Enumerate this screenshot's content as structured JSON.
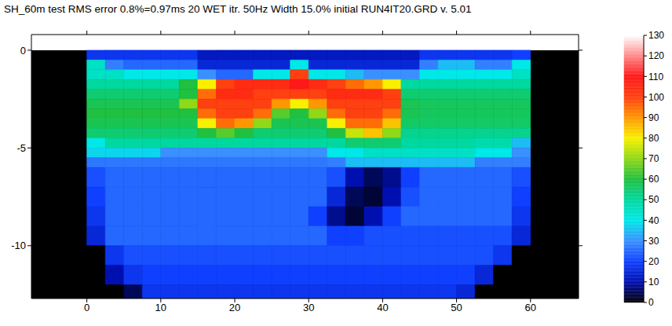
{
  "chart_data": {
    "type": "heatmap",
    "title": "SH_60m test RMS error 0.8%=0.97ms 20 WET itr. 50Hz Width 15.0% initial RUN4IT20.GRD v. 5.01",
    "xlim": [
      -7.5,
      66.5
    ],
    "xticks": [
      0,
      10,
      20,
      30,
      40,
      50,
      60
    ],
    "ylim": [
      -12.7,
      0.8
    ],
    "yticks": [
      -10,
      -5,
      0
    ],
    "x_edges": [
      0,
      2.5,
      5,
      7.5,
      10,
      12.5,
      15,
      17.5,
      20,
      22.5,
      25,
      27.5,
      30,
      32.5,
      35,
      37.5,
      40,
      42.5,
      45,
      47.5,
      50,
      52.5,
      55,
      57.5,
      60
    ],
    "z_edges": [
      0,
      -0.5,
      -1,
      -1.5,
      -2,
      -2.5,
      -3,
      -3.5,
      -4,
      -4.5,
      -5,
      -5.5,
      -6,
      -7,
      -8,
      -9,
      -10,
      -11,
      -12,
      -12.7
    ],
    "cells": [
      [
        18,
        18,
        18,
        18,
        18,
        18,
        12,
        12,
        12,
        12,
        12,
        12,
        12,
        12,
        12,
        12,
        12,
        12,
        18,
        18,
        18,
        18,
        18,
        20
      ],
      [
        45,
        28,
        25,
        25,
        25,
        25,
        15,
        15,
        15,
        15,
        15,
        40,
        15,
        15,
        15,
        15,
        15,
        15,
        28,
        35,
        35,
        28,
        28,
        40
      ],
      [
        45,
        45,
        40,
        40,
        40,
        40,
        30,
        25,
        25,
        40,
        40,
        100,
        40,
        40,
        35,
        30,
        30,
        30,
        40,
        40,
        40,
        40,
        40,
        45
      ],
      [
        50,
        50,
        50,
        50,
        50,
        60,
        80,
        100,
        105,
        105,
        105,
        110,
        105,
        100,
        95,
        90,
        80,
        50,
        50,
        50,
        50,
        50,
        50,
        50
      ],
      [
        55,
        55,
        55,
        55,
        55,
        60,
        95,
        105,
        105,
        100,
        100,
        100,
        100,
        105,
        105,
        105,
        100,
        55,
        55,
        55,
        55,
        55,
        55,
        55
      ],
      [
        58,
        58,
        58,
        58,
        58,
        70,
        100,
        100,
        100,
        100,
        90,
        80,
        90,
        100,
        100,
        100,
        100,
        58,
        57,
        57,
        57,
        57,
        57,
        57
      ],
      [
        60,
        60,
        60,
        60,
        60,
        60,
        95,
        100,
        100,
        95,
        65,
        60,
        70,
        95,
        100,
        100,
        95,
        58,
        57,
        57,
        57,
        57,
        57,
        57
      ],
      [
        58,
        58,
        58,
        58,
        58,
        58,
        80,
        95,
        90,
        70,
        58,
        58,
        58,
        80,
        95,
        95,
        85,
        56,
        56,
        56,
        56,
        56,
        56,
        56
      ],
      [
        55,
        55,
        55,
        55,
        55,
        55,
        60,
        65,
        60,
        55,
        55,
        55,
        55,
        60,
        75,
        85,
        70,
        52,
        52,
        52,
        52,
        52,
        52,
        52
      ],
      [
        40,
        50,
        50,
        50,
        50,
        50,
        50,
        50,
        50,
        50,
        50,
        50,
        50,
        50,
        55,
        55,
        55,
        50,
        50,
        50,
        50,
        48,
        48,
        35
      ],
      [
        38,
        38,
        38,
        38,
        30,
        30,
        30,
        30,
        30,
        30,
        30,
        30,
        30,
        40,
        40,
        45,
        45,
        45,
        45,
        45,
        45,
        40,
        40,
        30
      ],
      [
        27,
        27,
        27,
        27,
        27,
        27,
        27,
        27,
        27,
        27,
        27,
        27,
        27,
        28,
        35,
        35,
        35,
        35,
        35,
        35,
        35,
        28,
        28,
        28
      ],
      [
        22,
        25,
        25,
        25,
        25,
        25,
        25,
        25,
        25,
        25,
        25,
        25,
        25,
        22,
        10,
        5,
        8,
        20,
        25,
        25,
        25,
        25,
        25,
        22
      ],
      [
        20,
        25,
        25,
        25,
        25,
        25,
        25,
        25,
        25,
        25,
        25,
        25,
        25,
        15,
        5,
        3,
        10,
        22,
        25,
        25,
        25,
        25,
        25,
        20
      ],
      [
        18,
        25,
        25,
        25,
        25,
        25,
        25,
        25,
        25,
        25,
        25,
        25,
        20,
        8,
        3,
        10,
        20,
        25,
        25,
        25,
        25,
        25,
        25,
        18
      ],
      [
        15,
        25,
        25,
        25,
        25,
        25,
        25,
        25,
        25,
        25,
        25,
        25,
        25,
        20,
        20,
        22,
        22,
        22,
        22,
        22,
        22,
        22,
        22,
        15
      ],
      [
        0,
        18,
        22,
        22,
        22,
        22,
        22,
        22,
        22,
        22,
        22,
        22,
        22,
        22,
        22,
        22,
        22,
        22,
        22,
        22,
        22,
        22,
        18,
        0
      ],
      [
        0,
        10,
        18,
        20,
        20,
        20,
        20,
        20,
        20,
        20,
        20,
        20,
        20,
        20,
        20,
        20,
        20,
        20,
        20,
        20,
        20,
        15,
        0,
        0
      ],
      [
        0,
        0,
        5,
        18,
        18,
        18,
        18,
        18,
        18,
        18,
        18,
        18,
        18,
        18,
        18,
        18,
        18,
        18,
        18,
        18,
        15,
        0,
        0,
        0
      ]
    ],
    "colorbar": {
      "range": [
        0,
        130
      ],
      "ticks": [
        0,
        10,
        20,
        30,
        40,
        50,
        60,
        70,
        80,
        90,
        100,
        110,
        120,
        130
      ]
    }
  }
}
